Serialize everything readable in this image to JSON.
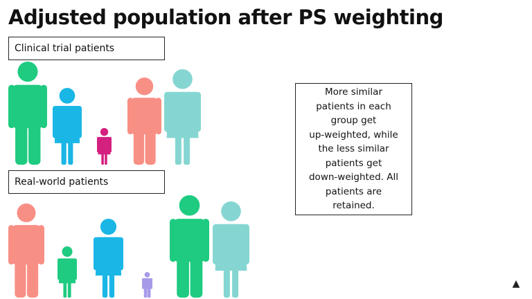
{
  "header": {
    "title": "Adjusted population after PS weighting"
  },
  "groups": [
    {
      "label": "Clinical trial patients"
    },
    {
      "label": "Real-world patients"
    }
  ],
  "explanation": {
    "lines": [
      "More similar",
      "patients in each",
      "group get",
      "up-weighted, while",
      "the less similar",
      "patients get",
      "down-weighted. All",
      "patients are",
      "retained."
    ]
  }
}
